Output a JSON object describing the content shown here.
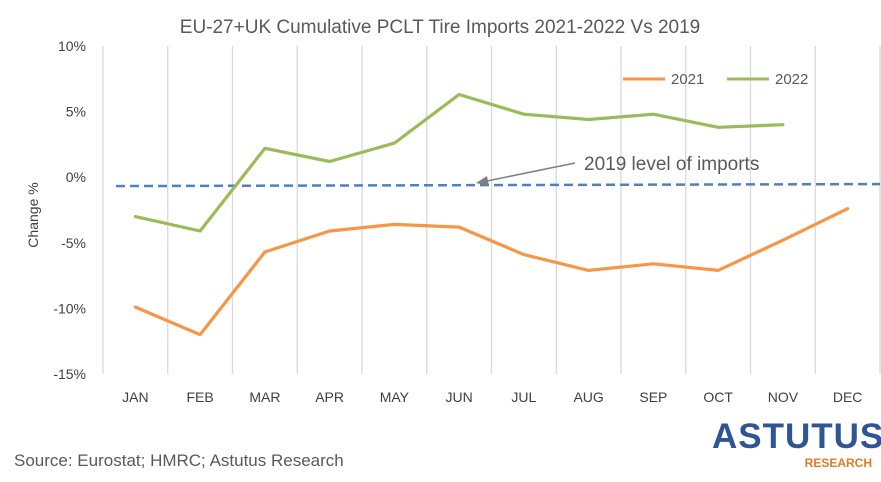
{
  "chart_data": {
    "type": "line",
    "title": "EU-27+UK Cumulative PCLT Tire Imports 2021-2022 Vs 2019",
    "ylabel": "Change %",
    "xlabel": "",
    "ylim": [
      -15,
      10
    ],
    "yticks": [
      10,
      5,
      0,
      -5,
      -10,
      -15
    ],
    "ytick_labels": [
      "10%",
      "5%",
      "0%",
      "-5%",
      "-10%",
      "-15%"
    ],
    "categories": [
      "JAN",
      "FEB",
      "MAR",
      "APR",
      "MAY",
      "JUN",
      "JUL",
      "AUG",
      "SEP",
      "OCT",
      "NOV",
      "DEC"
    ],
    "series": [
      {
        "name": "2021",
        "color": "#f79646",
        "values": [
          -9.9,
          -12.0,
          -5.7,
          -4.1,
          -3.6,
          -3.8,
          -5.9,
          -7.1,
          -6.6,
          -7.1,
          -4.8,
          -2.4
        ]
      },
      {
        "name": "2022",
        "color": "#9bbb59",
        "values": [
          -3.0,
          -4.1,
          2.2,
          1.2,
          2.6,
          6.3,
          4.8,
          4.4,
          4.8,
          3.8,
          4.0,
          null
        ]
      }
    ],
    "reference_line": {
      "label": "2019 level of imports",
      "value": -0.6,
      "color": "#4f81bd"
    },
    "grid": "vertical",
    "legend_position": "top-right"
  },
  "source": "Source: Eurostat; HMRC; Astutus Research",
  "logo": {
    "main": "ASTUTUS",
    "sub": "RESEARCH"
  }
}
